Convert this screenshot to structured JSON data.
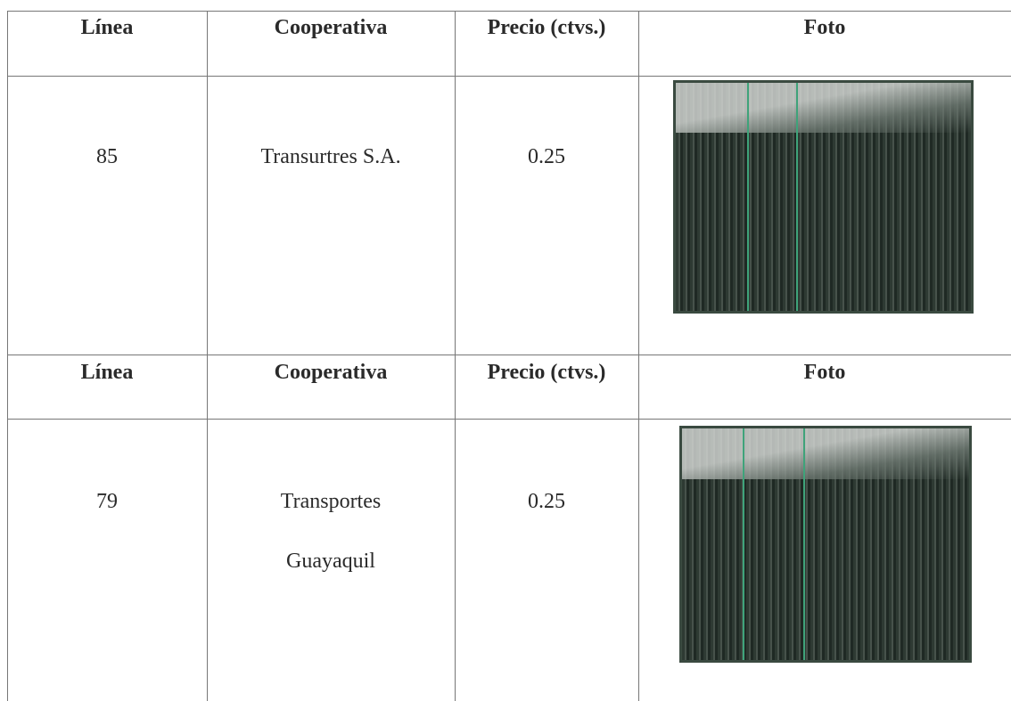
{
  "blocks": [
    {
      "header": [
        "Línea",
        "Cooperativa",
        "Precio (ctvs.)",
        "Foto"
      ],
      "row": {
        "linea": "85",
        "cooperativa": [
          "Transurtres S.A."
        ],
        "precio": "0.25"
      }
    },
    {
      "header": [
        "Línea",
        "Cooperativa",
        "Precio (ctvs.)",
        "Foto"
      ],
      "row": {
        "linea": "79",
        "cooperativa": [
          "Transportes",
          "Guayaquil"
        ],
        "precio": "0.25"
      }
    }
  ]
}
